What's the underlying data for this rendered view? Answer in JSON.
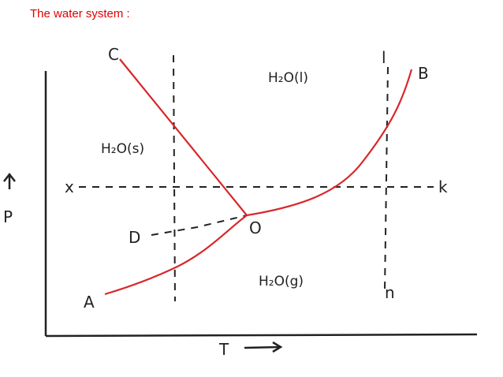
{
  "header": {
    "title": "The water system :"
  },
  "diagram": {
    "points": {
      "c": "C",
      "b": "B",
      "a": "A",
      "d": "D",
      "o": "O",
      "l": "l",
      "n": "n",
      "x": "x",
      "k": "k"
    },
    "regions": {
      "liquid": "H₂O(l)",
      "solid": "H₂O(s)",
      "gas": "H₂O(g)"
    },
    "axes": {
      "y": "P",
      "x": "T"
    }
  }
}
